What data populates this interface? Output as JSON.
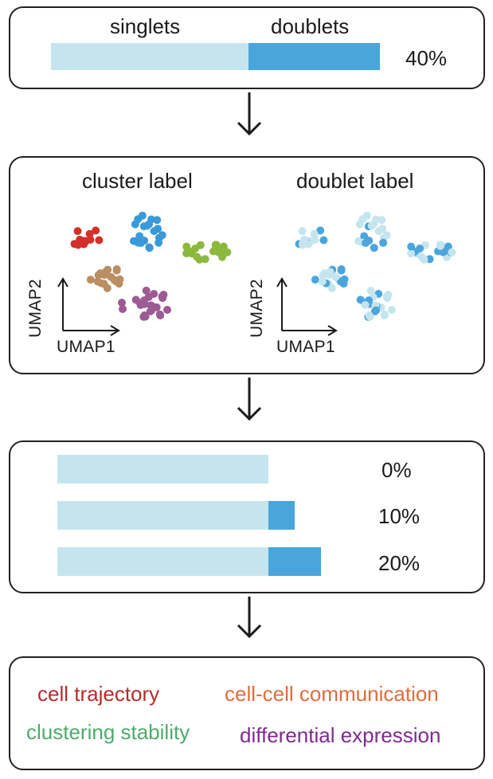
{
  "top_panel": {
    "singlets_label": "singlets",
    "doublets_label": "doublets",
    "rate_label": "40%",
    "singlet_fraction": 0.6,
    "doublet_fraction": 0.4
  },
  "umap_panel": {
    "cluster_title": "cluster label",
    "doublet_title": "doublet label",
    "axis_x": "UMAP1",
    "axis_y": "UMAP2"
  },
  "rates_panel": {
    "rows": [
      {
        "label": "0%",
        "doublet_extra": 0.0
      },
      {
        "label": "10%",
        "doublet_extra": 0.1
      },
      {
        "label": "20%",
        "doublet_extra": 0.2
      }
    ]
  },
  "tasks": {
    "cell_trajectory": "cell trajectory",
    "cell_communication": "cell-cell communication",
    "clustering_stability": "clustering stability",
    "differential_expression": "differential expression"
  },
  "colors": {
    "singlet": "#c5e5ee",
    "doublet": "#4aa5dc",
    "cluster_red": "#d42f2a",
    "cluster_blue": "#3a9ad9",
    "cluster_green": "#8ab93d",
    "cluster_tan": "#b98e62",
    "cluster_purple": "#9c5b93",
    "task_trajectory": "#b62c2c",
    "task_communication": "#e06c3c",
    "task_stability": "#4eab6a",
    "task_expression": "#7f2a8e"
  }
}
